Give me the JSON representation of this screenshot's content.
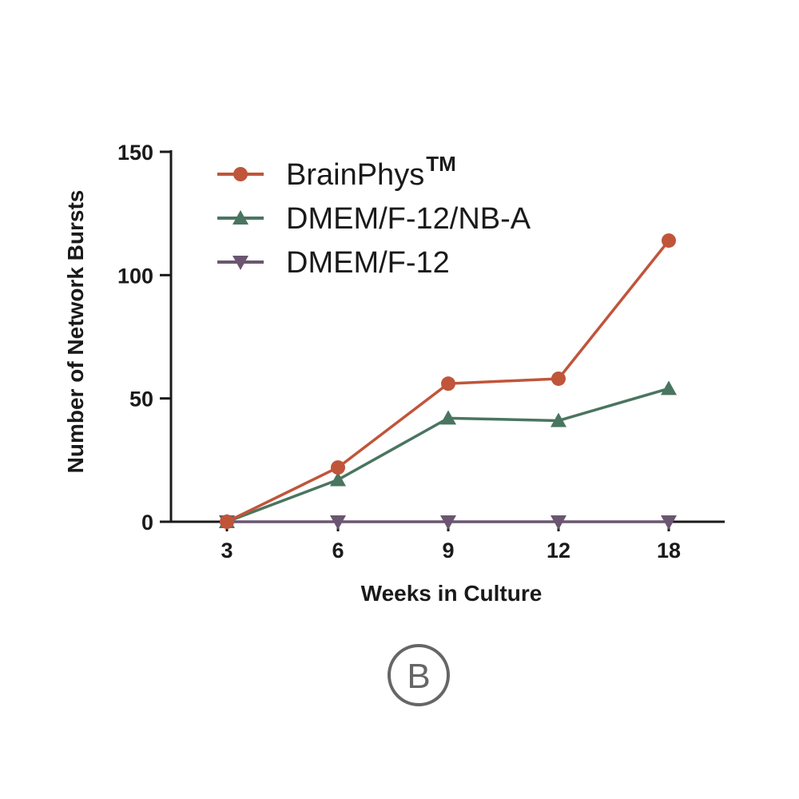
{
  "chart_data": {
    "type": "line",
    "categories": [
      "3",
      "6",
      "9",
      "12",
      "18"
    ],
    "xlabel": "Weeks in Culture",
    "ylabel": "Number of Network Bursts",
    "ylim": [
      0,
      150
    ],
    "yticks": [
      "0",
      "50",
      "100",
      "150"
    ],
    "grid": false,
    "legend_position": "top-left",
    "series": [
      {
        "name": "BrainPhys",
        "name_suffix": "TM",
        "marker": "circle",
        "color": "#c0553a",
        "values": [
          0,
          22,
          56,
          58,
          114
        ]
      },
      {
        "name": "DMEM/F-12/NB-A",
        "marker": "triangle-up",
        "color": "#4a7560",
        "values": [
          0,
          17,
          42,
          41,
          54
        ]
      },
      {
        "name": "DMEM/F-12",
        "marker": "triangle-down",
        "color": "#6b5670",
        "values": [
          0,
          0,
          0,
          0,
          0
        ]
      }
    ]
  },
  "panel_label": "B"
}
